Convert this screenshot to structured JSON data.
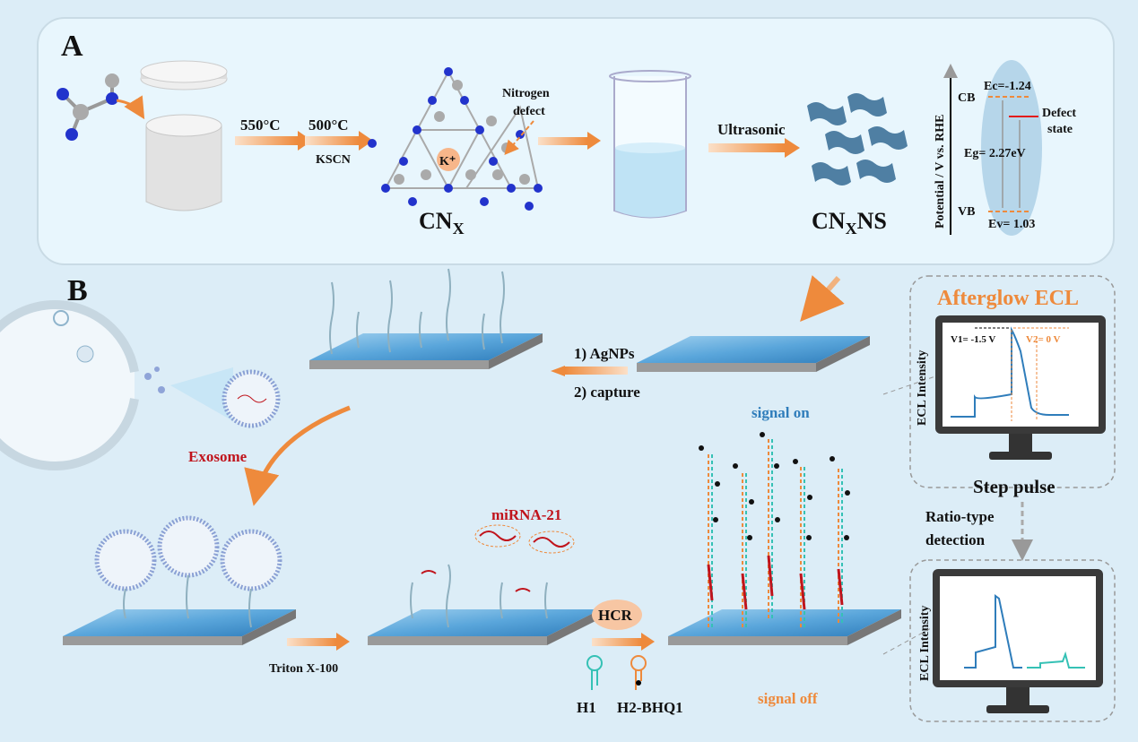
{
  "panel_a": {
    "label": "A",
    "temp1": "550°C",
    "temp2": "500°C",
    "reagent": "KSCN",
    "defect_label_1": "Nitrogen",
    "defect_label_2": "defect",
    "ion": "K⁺",
    "product_1": "CN",
    "product_1_sub": "X",
    "step": "Ultrasonic",
    "product_2": "CN",
    "product_2_sub": "X",
    "product_2_suffix": "NS",
    "band": {
      "axis_label": "Potential / V vs. RHE",
      "cb": "CB",
      "vb": "VB",
      "ec": "Ec=-1.24",
      "ev": "Ev= 1.03",
      "eg": "Eg= 2.27eV",
      "defect_1": "Defect",
      "defect_2": "state"
    }
  },
  "panel_b": {
    "label": "B",
    "exosome": "Exosome",
    "step1": "1) AgNPs",
    "step2": "2) capture",
    "signal_on": "signal on",
    "afterglow_title": "Afterglow ECL",
    "ecl_axis": "ECL Intensity",
    "v1": "V1= -1.5 V",
    "v2": "V2= 0 V",
    "step_pulse": "Step pulse",
    "ratio_1": "Ratio-type",
    "ratio_2": "detection",
    "mirna": "miRNA-21",
    "triton": "Triton X-100",
    "hcr": "HCR",
    "h1": "H1",
    "h2": "H2-BHQ1",
    "signal_off": "signal off",
    "ecl_axis_2": "ECL Intensity"
  },
  "colors": {
    "accent_orange": "#ee8a3c",
    "signal_blue": "#2f7dbb",
    "mirna_red": "#c0141c",
    "panel_bg": "#e8f6fd"
  }
}
